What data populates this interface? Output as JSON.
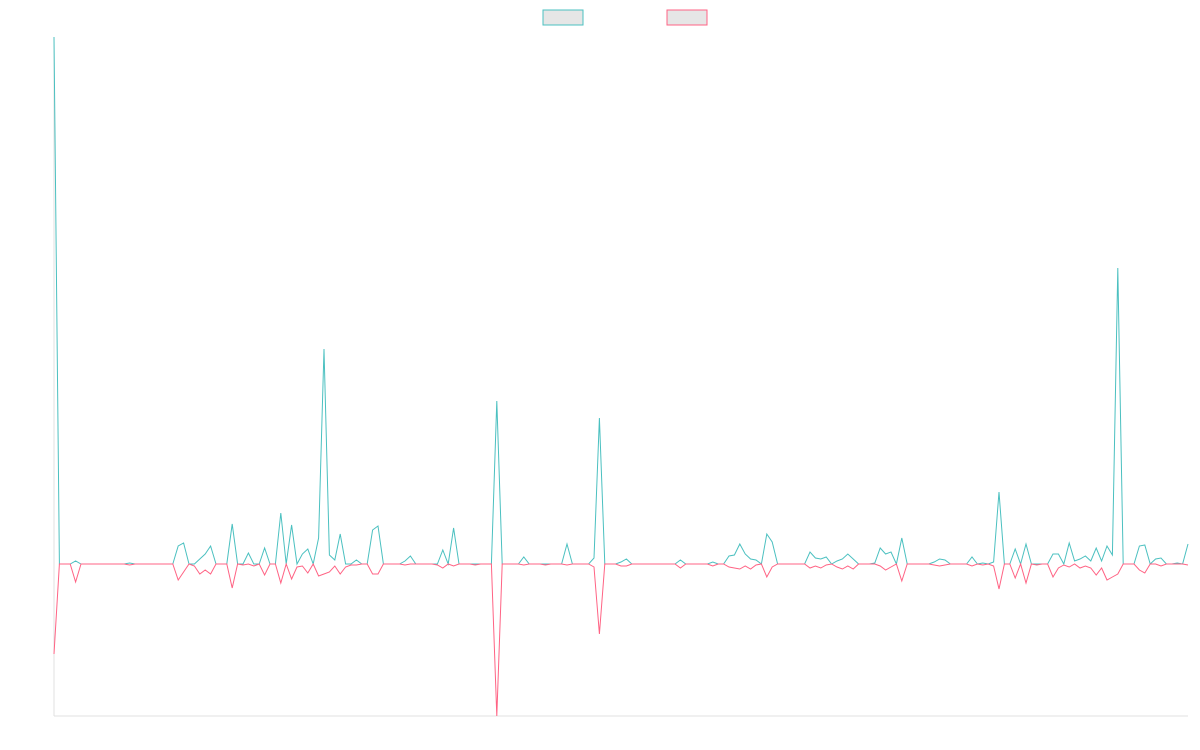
{
  "chart_data": {
    "type": "line",
    "ylim": [
      -15.2,
      52.7
    ],
    "legend": "top",
    "series": [
      {
        "color": "#4bc0c0",
        "values": [
          52.7,
          0,
          0,
          0,
          0.3,
          0,
          0,
          0,
          0,
          0,
          0,
          0,
          0,
          0,
          0.1,
          0,
          0,
          0,
          0,
          0,
          0,
          0,
          0,
          1.8,
          2.1,
          0,
          0,
          0.5,
          1.0,
          1.8,
          0,
          0,
          0,
          4.0,
          0,
          0,
          1.1,
          0,
          0,
          1.6,
          0,
          0,
          5.1,
          0,
          3.9,
          0,
          1.0,
          1.5,
          0,
          2.6,
          21.5,
          0.9,
          0.4,
          3.0,
          0,
          0,
          0.4,
          0,
          0,
          3.4,
          3.8,
          0,
          0,
          0,
          0,
          0.3,
          0.8,
          0,
          0,
          0,
          0,
          0,
          1.4,
          0,
          3.6,
          0,
          0,
          0,
          0,
          0,
          0,
          0,
          16.3,
          0,
          0,
          0,
          0,
          0.7,
          0,
          0,
          0,
          0,
          0,
          0,
          0,
          2.0,
          0,
          0,
          0,
          0,
          0.6,
          14.6,
          0,
          0,
          0,
          0.2,
          0.5,
          0,
          0,
          0,
          0,
          0,
          0,
          0,
          0,
          0,
          0.4,
          0,
          0,
          0,
          0,
          0,
          0.2,
          0,
          0,
          0.8,
          0.9,
          2.0,
          1.0,
          0.5,
          0.4,
          0,
          3.0,
          2.2,
          0,
          0,
          0,
          0,
          0,
          0,
          1.2,
          0.6,
          0.5,
          0.7,
          0,
          0.3,
          0.5,
          1.0,
          0.5,
          0,
          0,
          0,
          0.1,
          1.6,
          1.0,
          1.2,
          0,
          2.6,
          0,
          0,
          0,
          0,
          0,
          0.2,
          0.5,
          0.4,
          0,
          0,
          0,
          0,
          0.7,
          0,
          0.1,
          0,
          0.2,
          7.2,
          0,
          0,
          1.5,
          0,
          2.0,
          0,
          0,
          0,
          0,
          1.0,
          1.0,
          0,
          2.1,
          0.3,
          0.5,
          0.8,
          0.3,
          1.6,
          0.3,
          1.8,
          0.9,
          29.6,
          0,
          0,
          0,
          1.8,
          1.9,
          0,
          0.5,
          0.6,
          0,
          0,
          0.1,
          0,
          2.0
        ]
      },
      {
        "color": "#ff6384",
        "values": [
          -9.0,
          0,
          0,
          0,
          -1.8,
          0,
          0,
          0,
          0,
          0,
          0,
          0,
          0,
          0,
          -0.1,
          0,
          0,
          0,
          0,
          0,
          0,
          0,
          0,
          -1.6,
          -0.8,
          0,
          -0.2,
          -1.0,
          -0.6,
          -1.0,
          0,
          0,
          0,
          -2.4,
          0,
          -0.1,
          0,
          -0.2,
          0,
          -1.1,
          0,
          0,
          -1.9,
          0,
          -1.5,
          -0.3,
          -0.2,
          -0.9,
          0,
          -1.2,
          -1.0,
          -0.8,
          -0.2,
          -1.0,
          -0.3,
          -0.1,
          -0.1,
          0,
          0,
          -1.0,
          -1.0,
          0,
          0,
          0,
          0,
          -0.1,
          0,
          0,
          0,
          0,
          0,
          -0.1,
          -0.4,
          0,
          -0.2,
          0,
          0,
          0,
          -0.1,
          0,
          0,
          0,
          -15.2,
          0,
          0,
          0,
          0,
          -0.1,
          0,
          0,
          0,
          -0.1,
          0,
          0,
          0,
          -0.1,
          0,
          0,
          0,
          0,
          -0.3,
          -7.0,
          0,
          0,
          0,
          -0.2,
          -0.2,
          0,
          0,
          0,
          0,
          0,
          0,
          0,
          0,
          0,
          -0.4,
          0,
          0,
          0,
          0,
          0,
          -0.2,
          0,
          0,
          -0.3,
          -0.4,
          -0.5,
          -0.2,
          -0.5,
          -0.1,
          0,
          -1.3,
          -0.3,
          0,
          0,
          0,
          0,
          0,
          0,
          -0.4,
          -0.2,
          -0.4,
          -0.1,
          0,
          -0.3,
          -0.5,
          -0.2,
          -0.5,
          0,
          0,
          0,
          0,
          -0.2,
          -0.6,
          -0.3,
          0,
          -1.7,
          0,
          0,
          0,
          0,
          0,
          -0.1,
          -0.2,
          -0.1,
          0,
          0,
          0,
          0,
          -0.2,
          0,
          -0.1,
          0,
          -0.2,
          -2.5,
          0,
          0,
          -1.4,
          0,
          -1.9,
          0,
          -0.1,
          0,
          0,
          -1.3,
          -0.4,
          -0.1,
          -0.3,
          0,
          -0.4,
          -0.2,
          -0.4,
          -1.1,
          -0.4,
          -1.6,
          -1.3,
          -1.0,
          0,
          0,
          0,
          -0.6,
          -0.9,
          0,
          0,
          -0.2,
          0,
          0,
          0,
          0,
          -0.1
        ]
      }
    ]
  }
}
